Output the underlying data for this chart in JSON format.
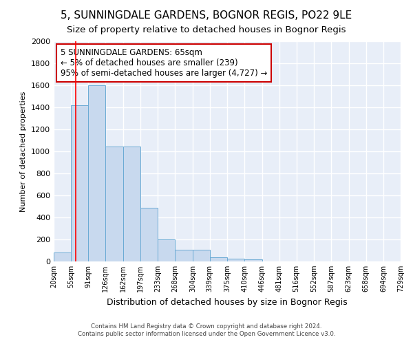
{
  "title": "5, SUNNINGDALE GARDENS, BOGNOR REGIS, PO22 9LE",
  "subtitle": "Size of property relative to detached houses in Bognor Regis",
  "xlabel": "Distribution of detached houses by size in Bognor Regis",
  "ylabel": "Number of detached properties",
  "footer1": "Contains HM Land Registry data © Crown copyright and database right 2024.",
  "footer2": "Contains public sector information licensed under the Open Government Licence v3.0.",
  "annotation_line1": "5 SUNNINGDALE GARDENS: 65sqm",
  "annotation_line2": "← 5% of detached houses are smaller (239)",
  "annotation_line3": "95% of semi-detached houses are larger (4,727) →",
  "bin_labels": [
    "20sqm",
    "55sqm",
    "91sqm",
    "126sqm",
    "162sqm",
    "197sqm",
    "233sqm",
    "268sqm",
    "304sqm",
    "339sqm",
    "375sqm",
    "410sqm",
    "446sqm",
    "481sqm",
    "516sqm",
    "552sqm",
    "587sqm",
    "623sqm",
    "658sqm",
    "694sqm",
    "729sqm"
  ],
  "bar_heights": [
    80,
    1420,
    1600,
    1045,
    1045,
    490,
    200,
    105,
    105,
    40,
    25,
    20,
    0,
    0,
    0,
    0,
    0,
    0,
    0,
    0
  ],
  "bin_edges": [
    20,
    55,
    91,
    126,
    162,
    197,
    233,
    268,
    304,
    339,
    375,
    410,
    446,
    481,
    516,
    552,
    587,
    623,
    658,
    694,
    729
  ],
  "bar_color": "#c8d9ee",
  "bar_edge_color": "#6aaad4",
  "red_line_x": 65,
  "ylim": [
    0,
    2000
  ],
  "yticks": [
    0,
    200,
    400,
    600,
    800,
    1000,
    1200,
    1400,
    1600,
    1800,
    2000
  ],
  "background_color": "#e8eef8",
  "grid_color": "#ffffff",
  "fig_background": "#ffffff",
  "title_fontsize": 11,
  "subtitle_fontsize": 9.5,
  "xlabel_fontsize": 9,
  "ylabel_fontsize": 8,
  "annotation_box_color": "#ffffff",
  "annotation_box_edge": "#cc0000",
  "annotation_fontsize": 8.5
}
